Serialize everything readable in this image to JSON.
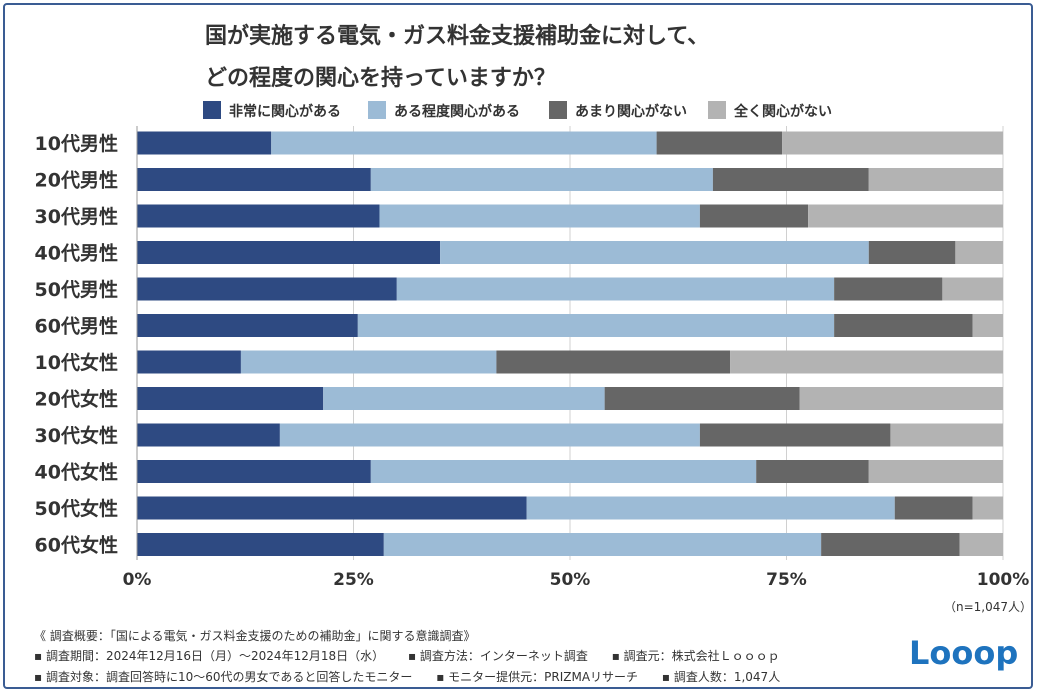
{
  "title": {
    "line1": "国が実施する電気・ガス料金支援補助金に対して、",
    "line2": "どの程度の関心を持っていますか？"
  },
  "n_label": "（n=1,047人）",
  "footer": {
    "line1": "《 調査概要：「国による電気・ガス料金支援のための補助金」に関する意識調査》",
    "period": "▪ 調査期間：2024年12月16日（月）〜2024年12月18日（水）",
    "method": "▪ 調査方法：インターネット調査",
    "source": "▪ 調査元：株式会社Ｌｏｏｏｐ",
    "target": "▪ 調査対象：調査回答時に10〜60代の男女であると回答したモニター",
    "provider": "▪ モニター提供元：PRIZMAリサーチ",
    "count": "▪ 調査人数：1,047人"
  },
  "logo_text": "Looop",
  "chart_data": {
    "type": "bar",
    "orientation": "horizontal",
    "stacked": true,
    "categories": [
      "10代男性",
      "20代男性",
      "30代男性",
      "40代男性",
      "50代男性",
      "60代男性",
      "10代女性",
      "20代女性",
      "30代女性",
      "40代女性",
      "50代女性",
      "60代女性"
    ],
    "series": [
      {
        "name": "非常に関心がある",
        "color": "#2e4a82",
        "values": [
          15.5,
          27,
          28,
          35,
          30,
          25.5,
          12,
          21.5,
          16.5,
          27,
          45,
          28.5
        ]
      },
      {
        "name": "ある程度関心がある",
        "color": "#9cbbd6",
        "values": [
          44.5,
          39.5,
          37,
          49.5,
          50.5,
          55,
          29.5,
          32.5,
          48.5,
          44.5,
          42.5,
          50.5
        ]
      },
      {
        "name": "あまり関心がない",
        "color": "#666666",
        "values": [
          14.5,
          18,
          12.5,
          10,
          12.5,
          16,
          27,
          22.5,
          22,
          13,
          9,
          16
        ]
      },
      {
        "name": "全く関心がない",
        "color": "#b3b3b3",
        "values": [
          25.5,
          15.5,
          22.5,
          5.5,
          7,
          3.5,
          31.5,
          23.5,
          13,
          15.5,
          3.5,
          5
        ]
      }
    ],
    "xlim": [
      0,
      100
    ],
    "xticks": [
      "0%",
      "25%",
      "50%",
      "75%",
      "100%"
    ],
    "grid": true,
    "legend": "top"
  }
}
